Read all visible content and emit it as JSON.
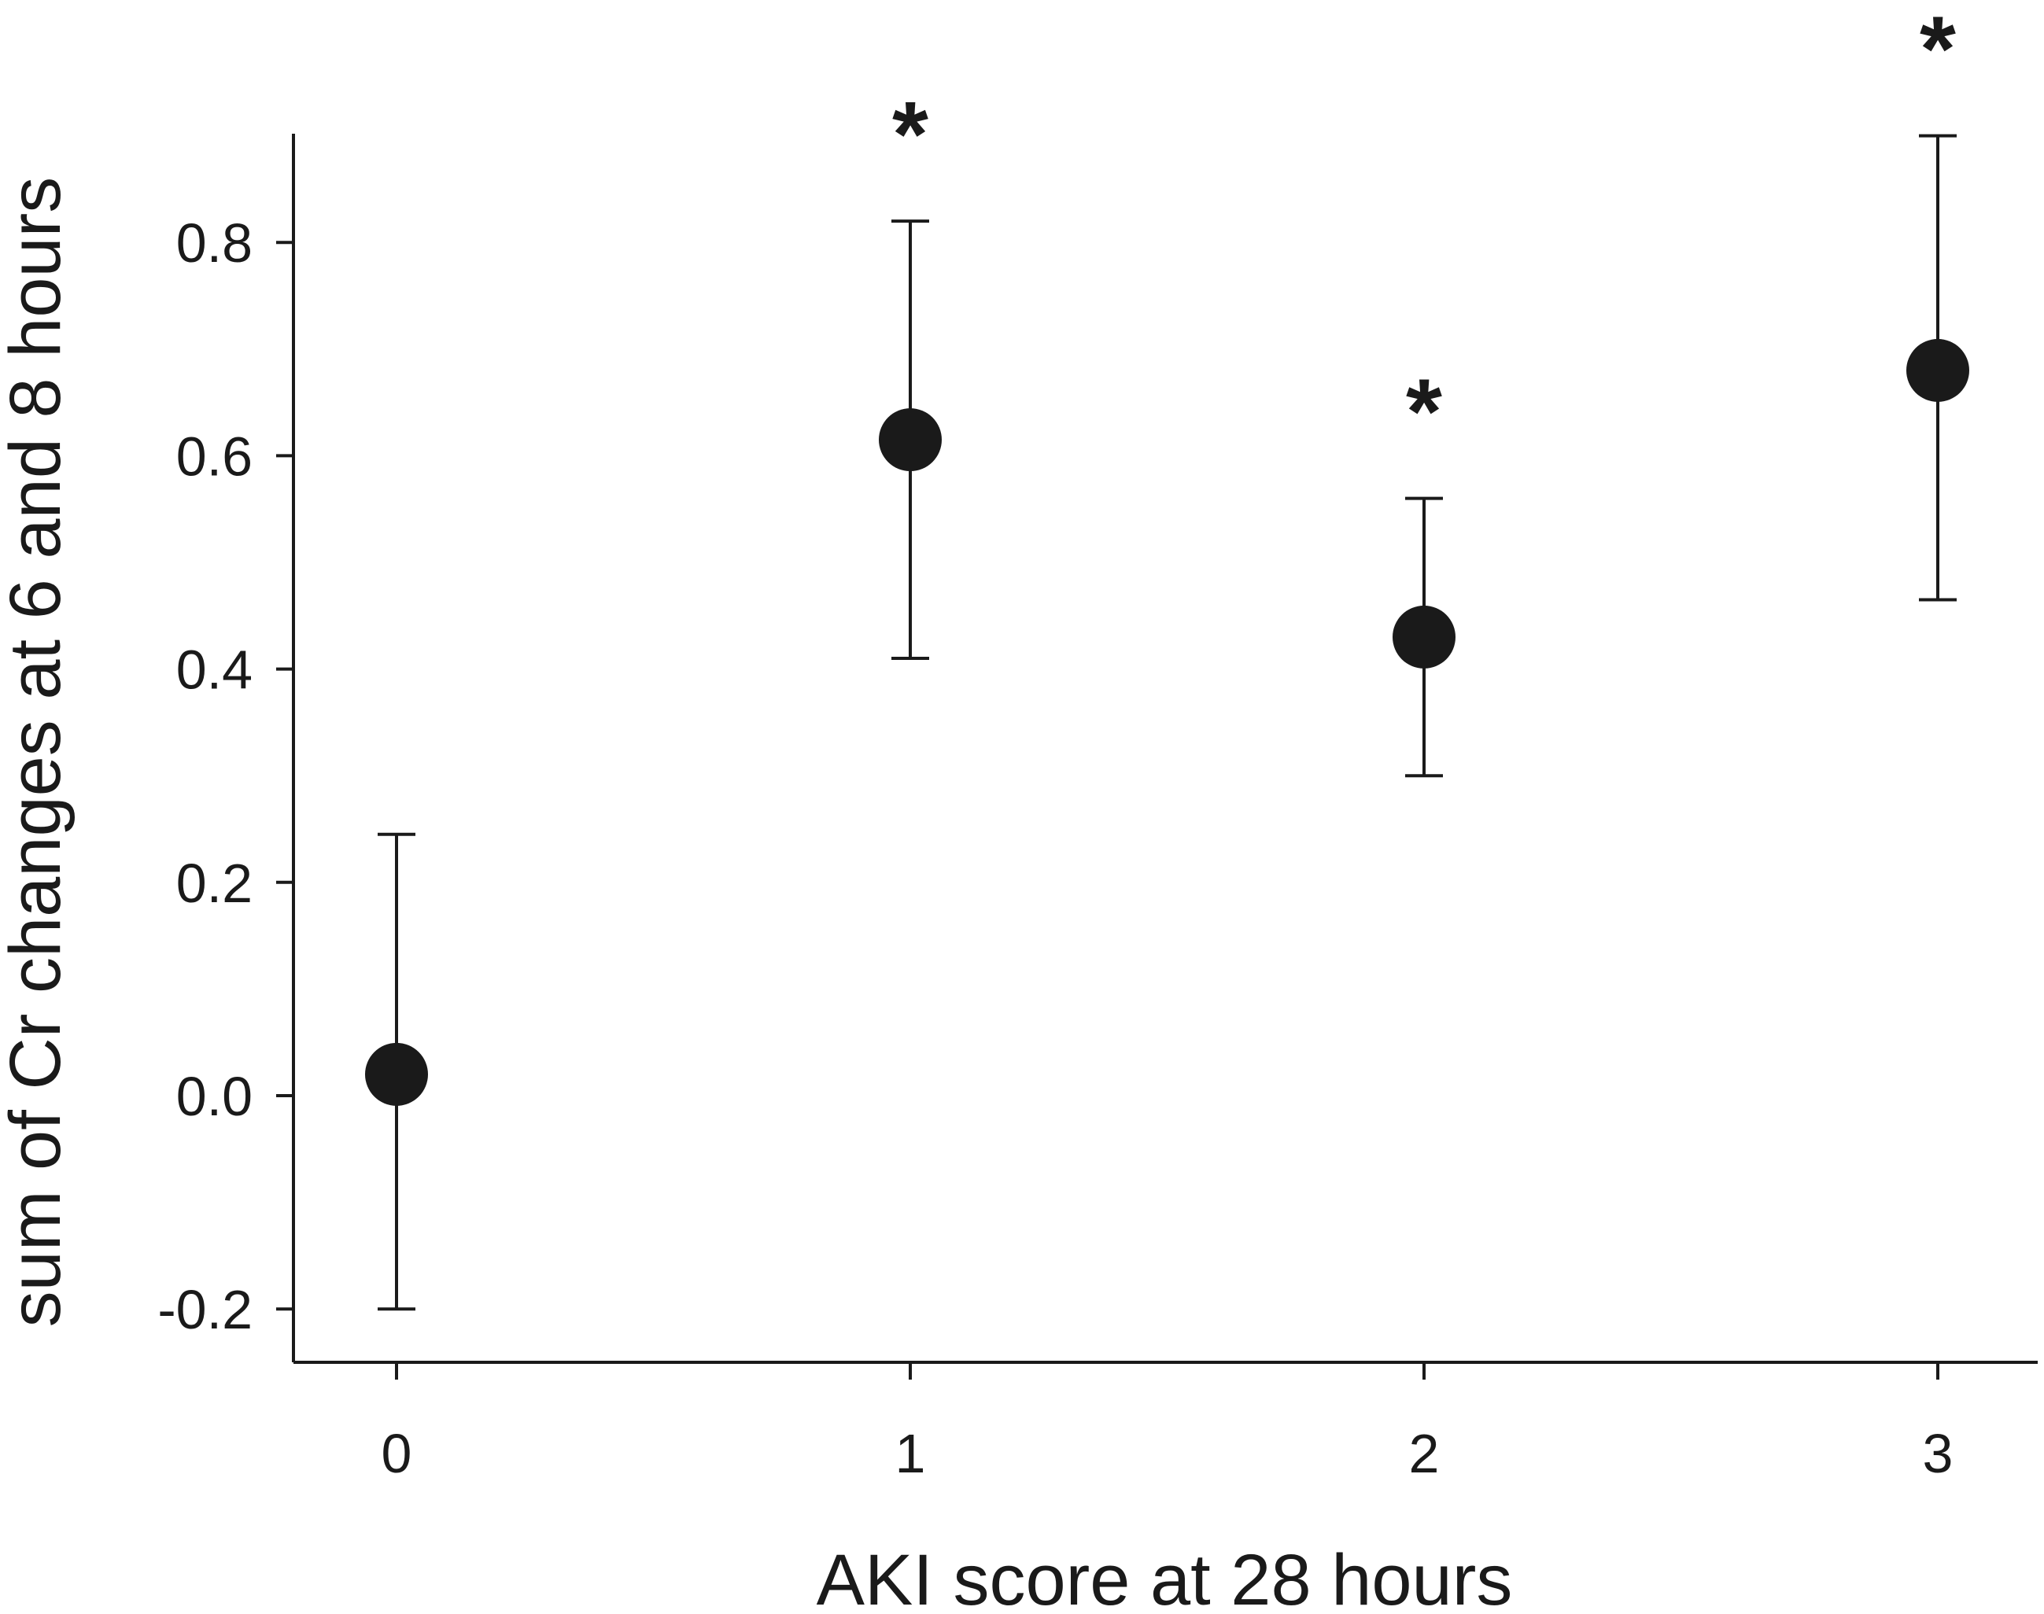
{
  "chart_data": {
    "type": "scatter",
    "xlabel": "AKI score at 28 hours",
    "ylabel": "sum of Cr changes at 6 and 8 hours",
    "ylim": [
      -0.25,
      0.9
    ],
    "x_categories": [
      "0",
      "1",
      "2",
      "3"
    ],
    "y_ticks": [
      -0.2,
      0.0,
      0.2,
      0.4,
      0.6,
      0.8
    ],
    "y_tick_labels": [
      "-0.2",
      "0.0",
      "0.2",
      "0.4",
      "0.6",
      "0.8"
    ],
    "points": [
      {
        "x": "0",
        "y": 0.02,
        "err_low": -0.2,
        "err_high": 0.245,
        "annotation": ""
      },
      {
        "x": "1",
        "y": 0.615,
        "err_low": 0.41,
        "err_high": 0.82,
        "annotation": "*"
      },
      {
        "x": "2",
        "y": 0.43,
        "err_low": 0.3,
        "err_high": 0.56,
        "annotation": "*"
      },
      {
        "x": "3",
        "y": 0.68,
        "err_low": 0.465,
        "err_high": 0.9,
        "annotation": "*"
      }
    ],
    "grid": false,
    "marker_color": "#1a1a1a"
  }
}
